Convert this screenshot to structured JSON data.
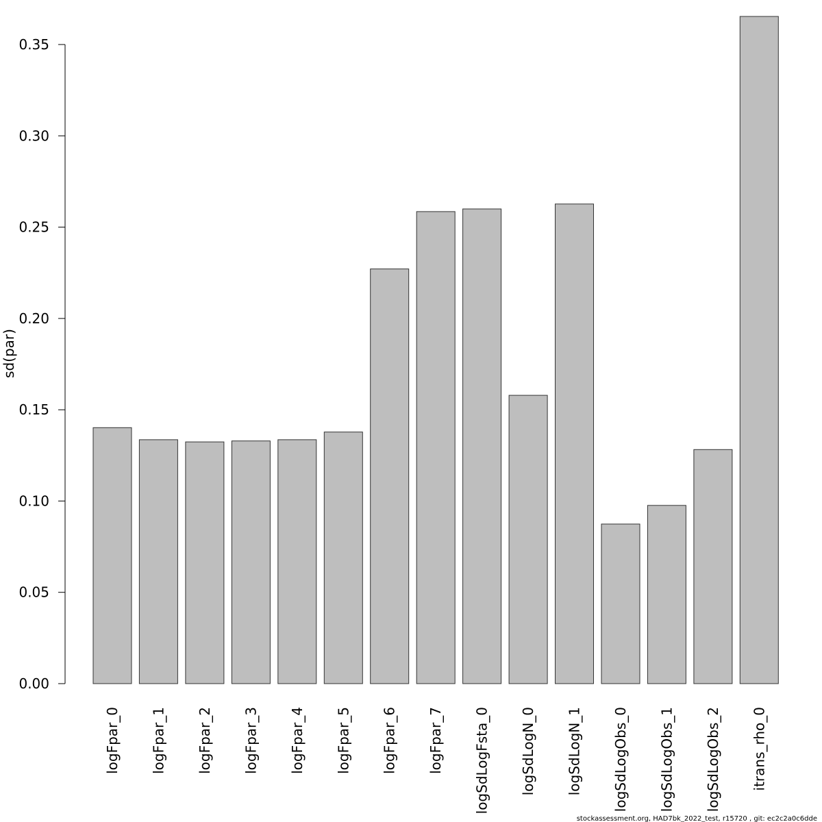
{
  "chart_data": {
    "type": "bar",
    "categories": [
      "logFpar_0",
      "logFpar_1",
      "logFpar_2",
      "logFpar_3",
      "logFpar_4",
      "logFpar_5",
      "logFpar_6",
      "logFpar_7",
      "logSdLogFsta_0",
      "logSdLogN_0",
      "logSdLogN_1",
      "logSdLogObs_0",
      "logSdLogObs_1",
      "logSdLogObs_2",
      "itrans_rho_0"
    ],
    "values": [
      0.1402,
      0.1336,
      0.1324,
      0.1329,
      0.1336,
      0.1378,
      0.2271,
      0.2585,
      0.26,
      0.1579,
      0.2627,
      0.0874,
      0.0976,
      0.1282,
      0.3654
    ],
    "ylabel": "sd(par)",
    "xlabel": "",
    "title": "",
    "ylim": [
      0,
      0.3654
    ],
    "yticks": [
      "0.00",
      "0.05",
      "0.10",
      "0.15",
      "0.20",
      "0.25",
      "0.30",
      "0.35"
    ],
    "bar_color": "#bebebe",
    "grid": false,
    "footer": "stockassessment.org, HAD7bk_2022_test, r15720 , git: ec2c2a0c6dde"
  }
}
